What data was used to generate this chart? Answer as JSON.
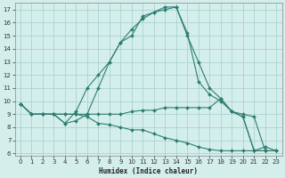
{
  "xlabel": "Humidex (Indice chaleur)",
  "x": [
    0,
    1,
    2,
    3,
    4,
    5,
    6,
    7,
    8,
    9,
    10,
    11,
    12,
    13,
    14,
    15,
    16,
    17,
    18,
    19,
    20,
    21,
    22,
    23
  ],
  "line1": [
    9.8,
    9.0,
    9.0,
    9.0,
    8.3,
    9.2,
    11.0,
    12.0,
    13.0,
    14.5,
    15.0,
    16.5,
    16.8,
    17.2,
    17.2,
    15.0,
    13.0,
    11.0,
    10.2,
    9.2,
    8.8,
    6.2,
    6.2,
    null
  ],
  "line2": [
    9.8,
    9.0,
    9.0,
    9.0,
    8.3,
    8.5,
    9.0,
    11.0,
    13.0,
    14.5,
    15.5,
    16.3,
    16.8,
    17.0,
    17.2,
    15.2,
    11.5,
    10.5,
    10.0,
    9.2,
    8.8,
    6.2,
    6.5,
    6.2
  ],
  "line3": [
    9.8,
    9.0,
    9.0,
    9.0,
    9.0,
    9.0,
    9.0,
    9.0,
    9.0,
    9.0,
    9.2,
    9.3,
    9.3,
    9.5,
    9.5,
    9.5,
    9.5,
    9.5,
    10.2,
    9.2,
    9.0,
    8.8,
    6.2,
    6.2
  ],
  "line4": [
    9.8,
    9.0,
    9.0,
    9.0,
    9.0,
    9.0,
    8.8,
    8.3,
    8.2,
    8.0,
    7.8,
    7.8,
    7.5,
    7.2,
    7.0,
    6.8,
    6.5,
    6.3,
    6.2,
    6.2,
    6.2,
    6.2,
    6.2,
    6.2
  ],
  "line_color": "#2e7d72",
  "bg_color": "#d4eeeb",
  "grid_color": "#aad4d0",
  "ylim": [
    5.8,
    17.5
  ],
  "xlim": [
    -0.5,
    23.5
  ],
  "yticks": [
    6,
    7,
    8,
    9,
    10,
    11,
    12,
    13,
    14,
    15,
    16,
    17
  ],
  "xticks": [
    0,
    1,
    2,
    3,
    4,
    5,
    6,
    7,
    8,
    9,
    10,
    11,
    12,
    13,
    14,
    15,
    16,
    17,
    18,
    19,
    20,
    21,
    22,
    23
  ],
  "xlabel_fontsize": 5.5,
  "tick_fontsize": 5.0,
  "marker_size": 2.0,
  "line_width": 0.8
}
